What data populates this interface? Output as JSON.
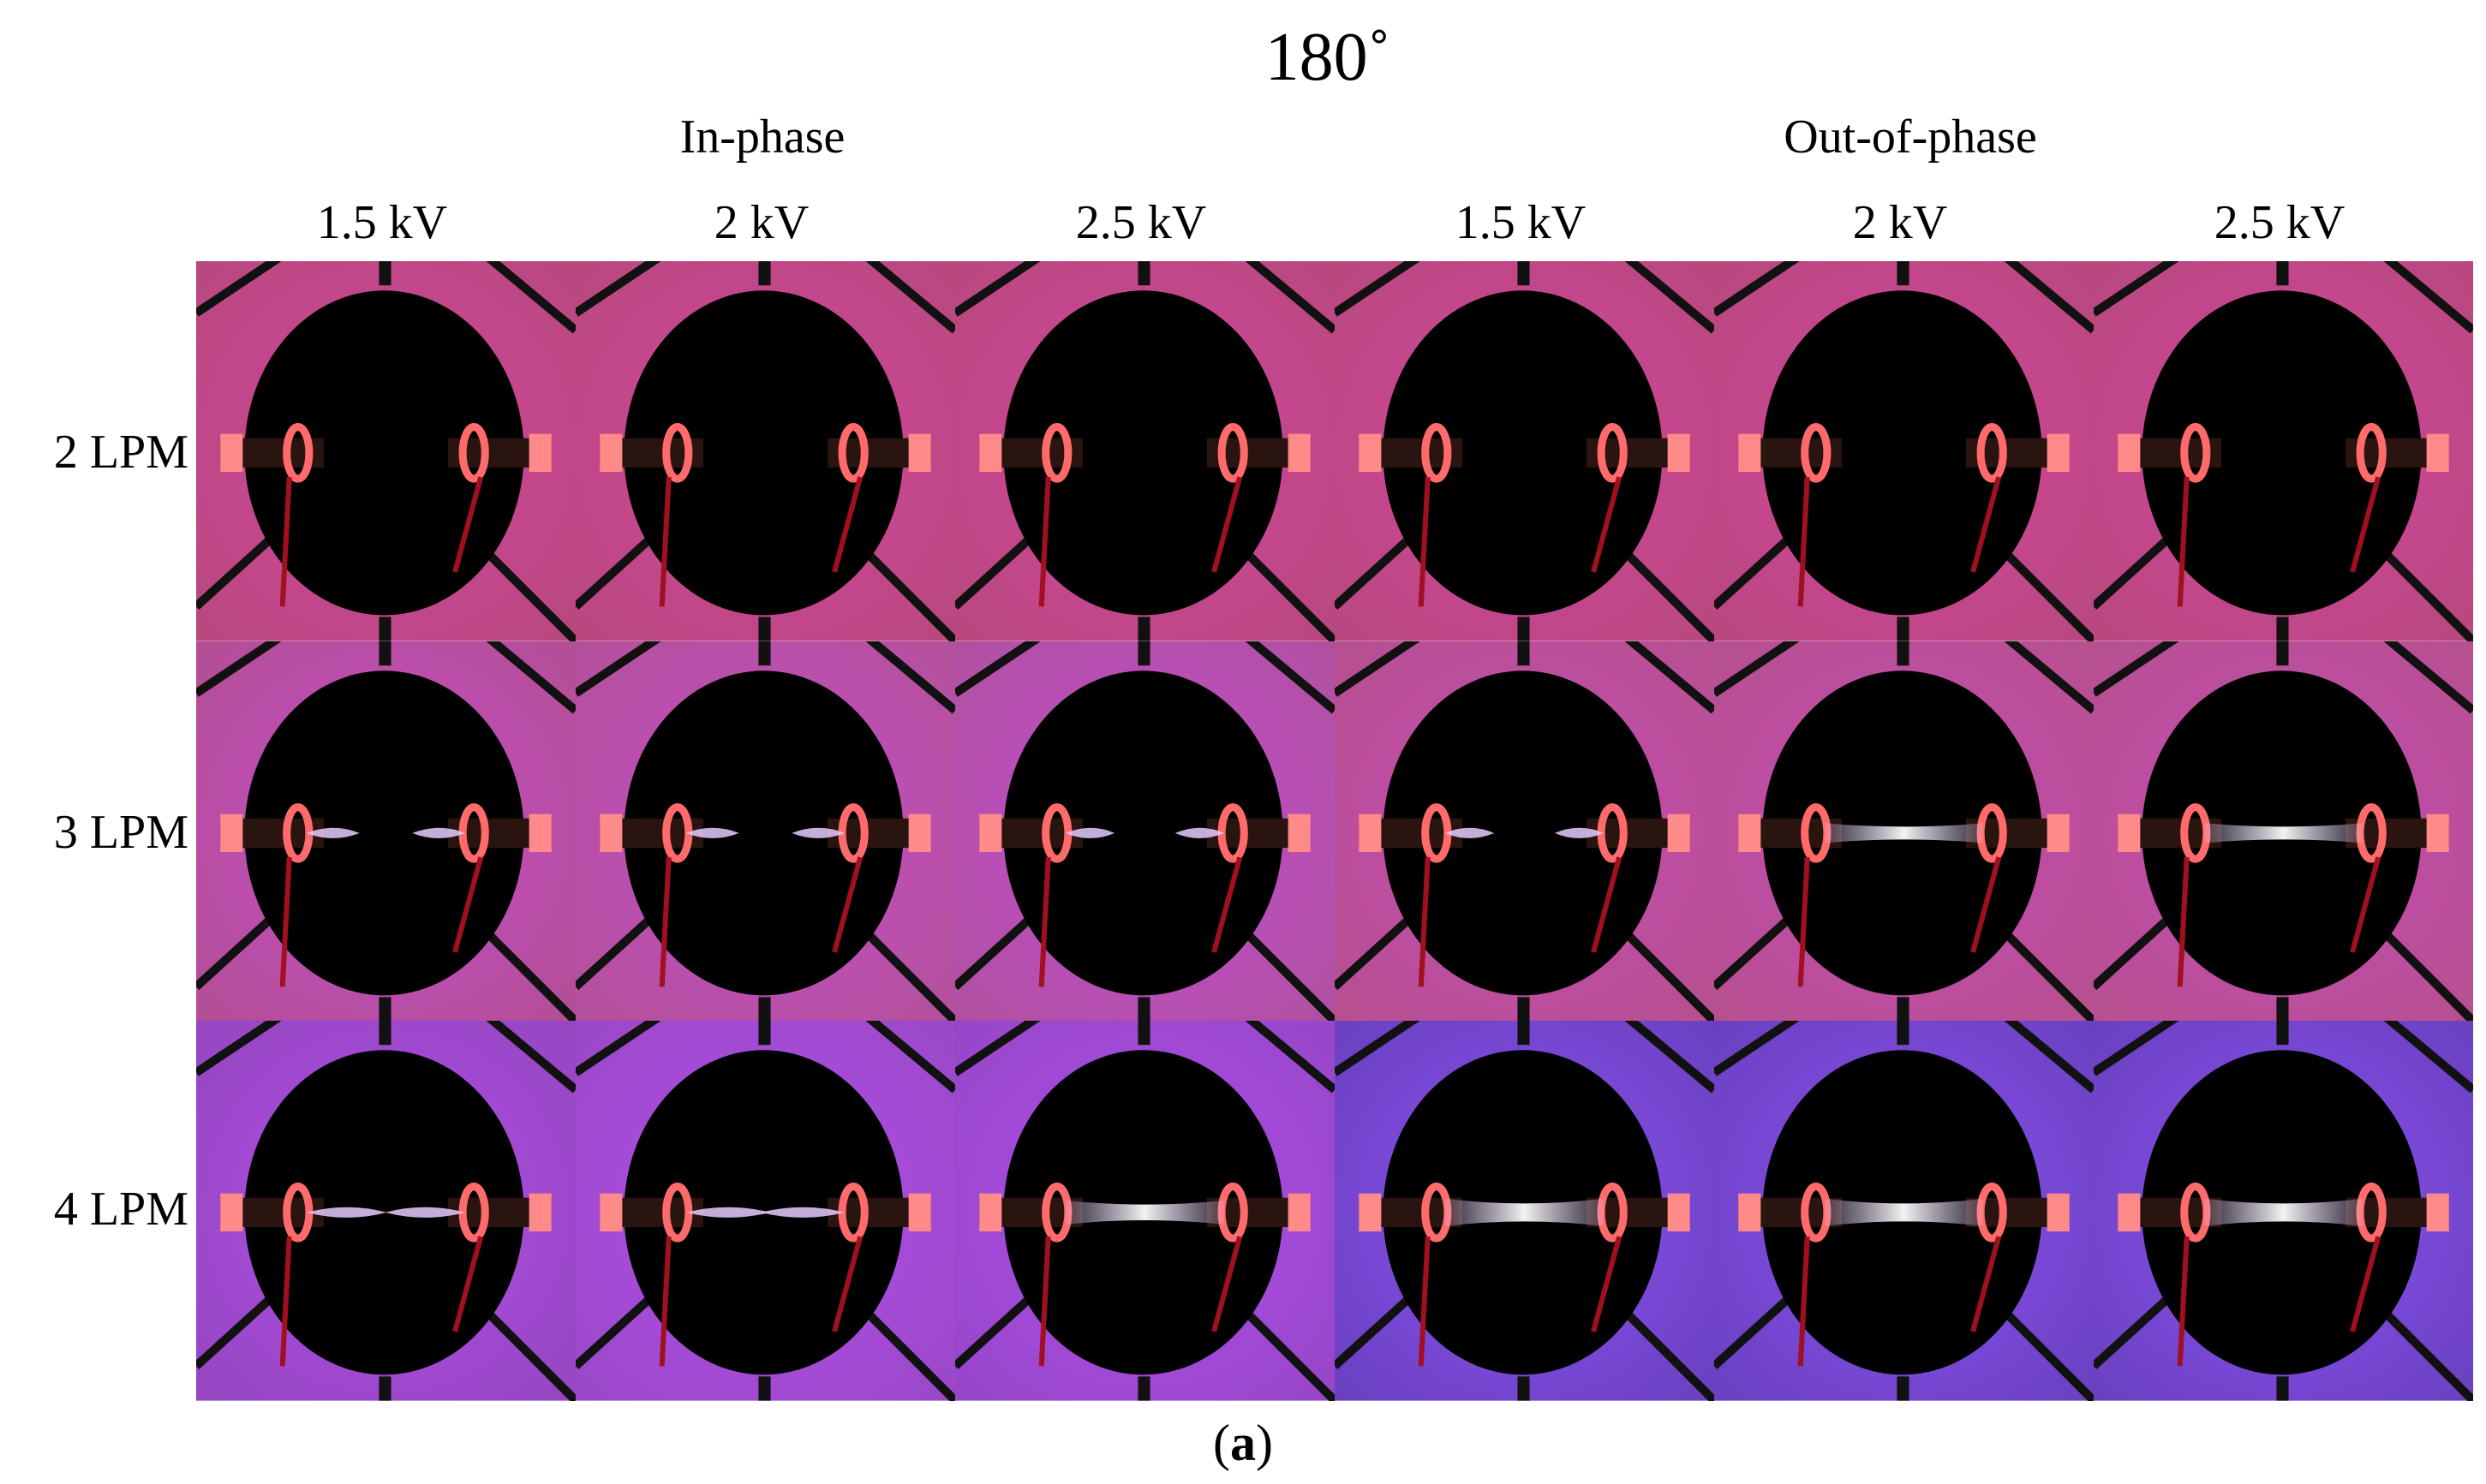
{
  "title": "180˚",
  "groups": {
    "in_phase": "In-phase",
    "out_of_phase": "Out-of-phase"
  },
  "columns": [
    "1.5 kV",
    "2 kV",
    "2.5 kV",
    "1.5 kV",
    "2 kV",
    "2.5 kV"
  ],
  "rows": [
    "2 LPM",
    "3 LPM",
    "4 LPM"
  ],
  "caption": {
    "open": "(",
    "letter": "a",
    "close": ")"
  },
  "panels": [
    [
      {
        "bg": "#b8487e",
        "ring": "#d2459e",
        "discharge": "none",
        "glow": 0.0
      },
      {
        "bg": "#b34e95",
        "ring": "#c44ec8",
        "discharge": "tips",
        "glow": 0.35
      },
      {
        "bg": "#9546c0",
        "ring": "#b04ee8",
        "discharge": "tips",
        "glow": 0.7
      }
    ],
    [
      {
        "bg": "#b8487e",
        "ring": "#d2459e",
        "discharge": "none",
        "glow": 0.0
      },
      {
        "bg": "#b3509a",
        "ring": "#c44ec8",
        "discharge": "tips",
        "glow": 0.35
      },
      {
        "bg": "#9a48c8",
        "ring": "#b24fea",
        "discharge": "tips",
        "glow": 0.75
      }
    ],
    [
      {
        "bg": "#b8487e",
        "ring": "#d2459e",
        "discharge": "none",
        "glow": 0.0
      },
      {
        "bg": "#b050a0",
        "ring": "#c24ed0",
        "discharge": "tips",
        "glow": 0.3
      },
      {
        "bg": "#9646c8",
        "ring": "#b04eea",
        "discharge": "bridge",
        "glow": 0.8
      }
    ],
    [
      {
        "bg": "#b8487e",
        "ring": "#d2459e",
        "discharge": "none",
        "glow": 0.0
      },
      {
        "bg": "#b6508e",
        "ring": "#c64ab8",
        "discharge": "tips",
        "glow": 0.3
      },
      {
        "bg": "#6a40c0",
        "ring": "#8a52f0",
        "discharge": "bridge",
        "glow": 1.0
      }
    ],
    [
      {
        "bg": "#b8487e",
        "ring": "#d2459e",
        "discharge": "none",
        "glow": 0.0
      },
      {
        "bg": "#b6508e",
        "ring": "#c64ab8",
        "discharge": "bridge",
        "glow": 0.55
      },
      {
        "bg": "#6a40c0",
        "ring": "#8a52f0",
        "discharge": "bridge",
        "glow": 1.0
      }
    ],
    [
      {
        "bg": "#b8487e",
        "ring": "#d2459e",
        "discharge": "none",
        "glow": 0.0
      },
      {
        "bg": "#b6508e",
        "ring": "#c64ab8",
        "discharge": "bridge",
        "glow": 0.55
      },
      {
        "bg": "#6a40c0",
        "ring": "#8a52f0",
        "discharge": "bridge",
        "glow": 1.0
      }
    ]
  ]
}
